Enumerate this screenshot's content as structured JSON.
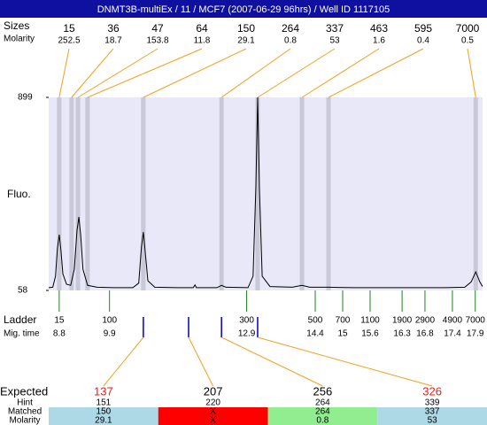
{
  "header": {
    "title": "DNMT3B-multiEx / 11 / MCF7 (2007-06-29 96hrs) / Well ID 1117105"
  },
  "chart_data": {
    "type": "electropherogram",
    "ylabel": "Fluo.",
    "ylim": [
      58,
      899
    ],
    "yticks": [
      58,
      899
    ],
    "xlim": [
      8.57,
      18.06
    ],
    "trace": {
      "color": "#000000",
      "x": [
        8.57,
        8.66,
        8.72,
        8.76,
        8.8,
        8.84,
        8.88,
        8.96,
        9.05,
        9.13,
        9.19,
        9.23,
        9.27,
        9.32,
        9.42,
        9.63,
        10.02,
        10.41,
        10.54,
        10.6,
        10.64,
        10.68,
        10.74,
        10.89,
        11.38,
        11.73,
        11.77,
        11.8,
        12.25,
        12.35,
        12.45,
        12.93,
        13.04,
        13.1,
        13.14,
        13.18,
        13.24,
        13.41,
        13.9,
        14.11,
        14.28,
        14.69,
        15.25,
        16.22,
        17.19,
        17.67,
        17.81,
        17.91,
        18.0,
        18.06
      ],
      "values": [
        70,
        72,
        120,
        240,
        301,
        230,
        130,
        85,
        80,
        150,
        320,
        378,
        300,
        150,
        80,
        72,
        70,
        70,
        90,
        250,
        312,
        230,
        100,
        72,
        70,
        70,
        82,
        70,
        70,
        80,
        72,
        70,
        120,
        500,
        899,
        500,
        120,
        75,
        72,
        80,
        72,
        72,
        70,
        70,
        70,
        72,
        95,
        139,
        95,
        75
      ]
    },
    "peaks": {
      "label_sizes": "Sizes",
      "label_molarity": "Molarity",
      "color": "#c8c8d8",
      "line_color": "#f0a020",
      "sizes": [
        15,
        36,
        47,
        64,
        150,
        264,
        337,
        463,
        595,
        7000
      ],
      "molarity": [
        252.5,
        18.7,
        153.8,
        11.8,
        29.1,
        0.8,
        53,
        1.6,
        0.4,
        0.5
      ],
      "mig_times": [
        8.8,
        9.07,
        9.21,
        9.42,
        10.64,
        12.35,
        13.14,
        14.11,
        14.69,
        17.91
      ]
    },
    "ladder": {
      "label": "Ladder",
      "label_mig_time": "Mig. time",
      "color": "#208020",
      "sizes": [
        15,
        100,
        300,
        500,
        700,
        1100,
        1900,
        2900,
        4900,
        7000
      ],
      "mig_times": [
        8.8,
        9.9,
        12.9,
        14.4,
        15,
        15.6,
        16.3,
        16.8,
        17.4,
        17.9
      ]
    },
    "expected": {
      "label": "Expected",
      "hint_label": "Hint",
      "matched_label": "Matched",
      "molarity_label": "Molarity",
      "values": [
        137,
        207,
        256,
        326
      ],
      "colors": [
        "#e02020",
        "#000000",
        "#000000",
        "#e02020"
      ],
      "hints": [
        151,
        220,
        264,
        339
      ],
      "hint_mig_times": [
        10.64,
        11.63,
        12.35,
        13.14
      ],
      "marker_color": "#0000c0",
      "matched": [
        150,
        "X",
        264,
        337
      ],
      "molarity": [
        29.1,
        "X",
        0.8,
        53
      ],
      "matched_colors": [
        "#add8e6",
        "#ff0000",
        "#90ee90",
        "#add8e6"
      ]
    }
  }
}
